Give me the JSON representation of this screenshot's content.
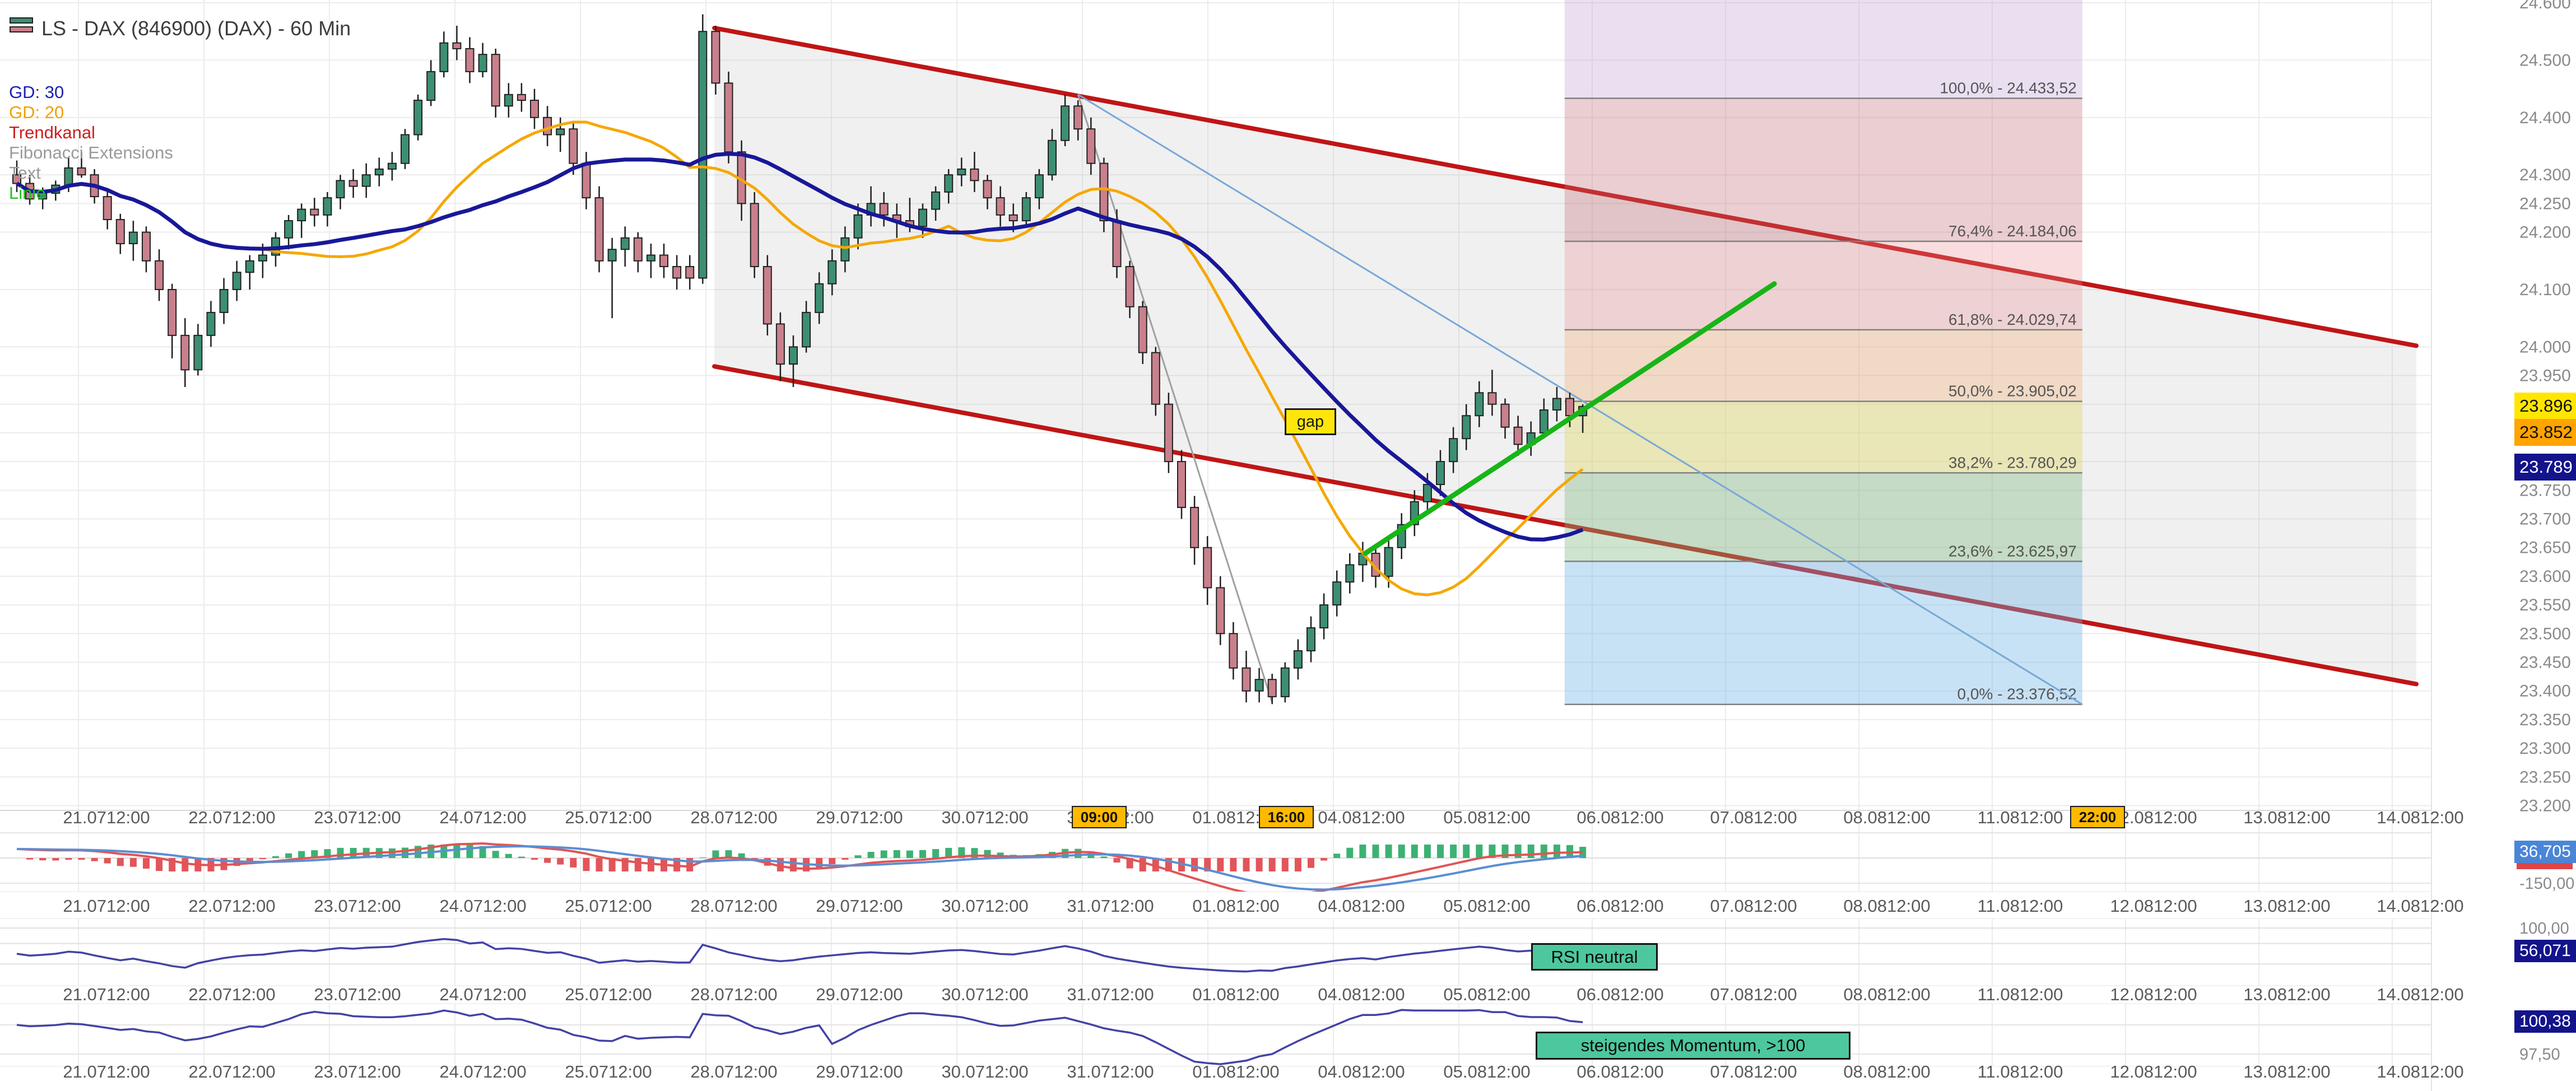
{
  "header": {
    "title": "LS - DAX (846900) (DAX) - 60 Min"
  },
  "legend": {
    "items": [
      {
        "label": "GD: 30",
        "color": "#2020b0"
      },
      {
        "label": "GD: 20",
        "color": "#f0a000"
      },
      {
        "label": "Trendkanal",
        "color": "#cc1f1f"
      },
      {
        "label": "Fibonacci Extensions",
        "color": "#9a9a9a"
      },
      {
        "label": "Text",
        "color": "#9a9a9a"
      },
      {
        "label": "Linie",
        "color": "#22c022"
      }
    ]
  },
  "annotations": {
    "gap": "gap",
    "rsi": "RSI neutral",
    "momentum": "steigendes Momentum, >100"
  },
  "price_axis": {
    "ticks": [
      "24.600",
      "24.500",
      "24.400",
      "24.300",
      "24.250",
      "24.200",
      "24.100",
      "24.000",
      "23.950",
      "23.750",
      "23.700",
      "23.650",
      "23.600",
      "23.550",
      "23.500",
      "23.450",
      "23.400",
      "23.350",
      "23.300",
      "23.250",
      "23.200"
    ],
    "hidden_grid_prices": [
      23900,
      23850,
      23800
    ],
    "badges": [
      {
        "label": "23.896",
        "bg": "#ffe600",
        "fg": "#111111",
        "price": 23896
      },
      {
        "label": "23.852",
        "bg": "#ffa400",
        "fg": "#111111",
        "price": 23852
      },
      {
        "label": "23.789",
        "bg": "#13138c",
        "fg": "#ffffff",
        "price": 23789
      }
    ]
  },
  "time_axis": {
    "dates": [
      "21.07",
      "22.07",
      "23.07",
      "24.07",
      "25.07",
      "28.07",
      "29.07",
      "30.07",
      "31.07",
      "01.08",
      "04.08",
      "05.08",
      "06.08",
      "07.08",
      "08.08",
      "11.08",
      "12.08",
      "13.08",
      "14.08"
    ],
    "time_suffix": "12:00",
    "badges": [
      {
        "label": "09:00",
        "day_index": 8,
        "dx": -20
      },
      {
        "label": "16:00",
        "day_index": 9,
        "dx": 90
      },
      {
        "label": "22:00",
        "day_index": 16,
        "dx": -100
      }
    ]
  },
  "panels": {
    "macd": {
      "name": "MACD",
      "badge": "36,705",
      "axis_label": "-150,00"
    },
    "rsi": {
      "name": "RSI",
      "badge": "56,071",
      "axis_label": "100,00"
    },
    "momentum": {
      "name": "Momentum",
      "badge": "100,38",
      "axis_label": "97,50"
    }
  },
  "chart_data": {
    "type": "candlestick",
    "title": "LS - DAX (846900) (DAX) - 60 Min",
    "interval": "60 Min",
    "ylim": [
      23200,
      24600
    ],
    "grid": true,
    "x_dates": [
      "21.07",
      "22.07",
      "23.07",
      "24.07",
      "25.07",
      "28.07",
      "29.07",
      "30.07",
      "31.07",
      "01.08",
      "04.08",
      "05.08",
      "06.08",
      "07.08",
      "08.08",
      "11.08",
      "12.08",
      "13.08",
      "14.08"
    ],
    "bars_per_day_approx": 10,
    "candles": [
      [
        24300,
        24325,
        24270,
        24285
      ],
      [
        24285,
        24300,
        24248,
        24258
      ],
      [
        24258,
        24278,
        24240,
        24268
      ],
      [
        24268,
        24290,
        24255,
        24282
      ],
      [
        24282,
        24330,
        24270,
        24312
      ],
      [
        24312,
        24340,
        24295,
        24300
      ],
      [
        24300,
        24310,
        24250,
        24262
      ],
      [
        24262,
        24272,
        24205,
        24222
      ],
      [
        24222,
        24232,
        24162,
        24180
      ],
      [
        24180,
        24220,
        24150,
        24200
      ],
      [
        24200,
        24210,
        24130,
        24150
      ],
      [
        24150,
        24170,
        24080,
        24100
      ],
      [
        24100,
        24110,
        23980,
        24020
      ],
      [
        24020,
        24050,
        23930,
        23960
      ],
      [
        23960,
        24040,
        23950,
        24020
      ],
      [
        24020,
        24080,
        24000,
        24060
      ],
      [
        24060,
        24120,
        24040,
        24100
      ],
      [
        24100,
        24150,
        24080,
        24130
      ],
      [
        24130,
        24160,
        24100,
        24150
      ],
      [
        24150,
        24180,
        24120,
        24160
      ],
      [
        24160,
        24200,
        24140,
        24190
      ],
      [
        24190,
        24230,
        24170,
        24220
      ],
      [
        24220,
        24250,
        24190,
        24240
      ],
      [
        24240,
        24260,
        24210,
        24230
      ],
      [
        24230,
        24270,
        24210,
        24260
      ],
      [
        24260,
        24300,
        24240,
        24290
      ],
      [
        24290,
        24310,
        24260,
        24280
      ],
      [
        24280,
        24320,
        24260,
        24300
      ],
      [
        24300,
        24330,
        24280,
        24310
      ],
      [
        24310,
        24340,
        24290,
        24320
      ],
      [
        24320,
        24380,
        24310,
        24370
      ],
      [
        24370,
        24440,
        24360,
        24430
      ],
      [
        24430,
        24500,
        24420,
        24480
      ],
      [
        24480,
        24550,
        24470,
        24530
      ],
      [
        24530,
        24560,
        24500,
        24520
      ],
      [
        24520,
        24540,
        24460,
        24480
      ],
      [
        24480,
        24530,
        24470,
        24510
      ],
      [
        24510,
        24520,
        24400,
        24420
      ],
      [
        24420,
        24460,
        24400,
        24440
      ],
      [
        24440,
        24460,
        24410,
        24430
      ],
      [
        24430,
        24450,
        24380,
        24400
      ],
      [
        24400,
        24420,
        24350,
        24370
      ],
      [
        24370,
        24400,
        24340,
        24380
      ],
      [
        24380,
        24390,
        24300,
        24320
      ],
      [
        24320,
        24340,
        24240,
        24260
      ],
      [
        24260,
        24280,
        24130,
        24150
      ],
      [
        24150,
        24190,
        24050,
        24170
      ],
      [
        24170,
        24210,
        24140,
        24190
      ],
      [
        24190,
        24200,
        24130,
        24150
      ],
      [
        24150,
        24180,
        24120,
        24160
      ],
      [
        24160,
        24180,
        24120,
        24140
      ],
      [
        24140,
        24160,
        24100,
        24120
      ],
      [
        24140,
        24160,
        24100,
        24120
      ],
      [
        24120,
        24580,
        24110,
        24550
      ],
      [
        24550,
        24560,
        24440,
        24460
      ],
      [
        24460,
        24480,
        24320,
        24340
      ],
      [
        24340,
        24360,
        24220,
        24250
      ],
      [
        24250,
        24270,
        24120,
        24140
      ],
      [
        24140,
        24160,
        24020,
        24040
      ],
      [
        24040,
        24060,
        23940,
        23970
      ],
      [
        23970,
        24020,
        23930,
        24000
      ],
      [
        24000,
        24080,
        23990,
        24060
      ],
      [
        24060,
        24130,
        24040,
        24110
      ],
      [
        24110,
        24170,
        24090,
        24150
      ],
      [
        24150,
        24210,
        24130,
        24190
      ],
      [
        24190,
        24250,
        24170,
        24230
      ],
      [
        24230,
        24280,
        24210,
        24250
      ],
      [
        24250,
        24270,
        24210,
        24230
      ],
      [
        24230,
        24250,
        24190,
        24220
      ],
      [
        24220,
        24260,
        24200,
        24210
      ],
      [
        24210,
        24250,
        24190,
        24240
      ],
      [
        24240,
        24280,
        24220,
        24270
      ],
      [
        24270,
        24310,
        24250,
        24300
      ],
      [
        24300,
        24330,
        24280,
        24310
      ],
      [
        24310,
        24340,
        24270,
        24290
      ],
      [
        24290,
        24300,
        24240,
        24260
      ],
      [
        24260,
        24280,
        24210,
        24230
      ],
      [
        24230,
        24250,
        24200,
        24220
      ],
      [
        24220,
        24270,
        24210,
        24260
      ],
      [
        24260,
        24310,
        24240,
        24300
      ],
      [
        24300,
        24380,
        24290,
        24360
      ],
      [
        24360,
        24440,
        24350,
        24420
      ],
      [
        24420,
        24430,
        24360,
        24380
      ],
      [
        24380,
        24400,
        24300,
        24320
      ],
      [
        24320,
        24330,
        24200,
        24220
      ],
      [
        24220,
        24240,
        24120,
        24140
      ],
      [
        24140,
        24150,
        24050,
        24070
      ],
      [
        24070,
        24080,
        23970,
        23990
      ],
      [
        23990,
        24000,
        23880,
        23900
      ],
      [
        23900,
        23920,
        23780,
        23800
      ],
      [
        23800,
        23820,
        23700,
        23720
      ],
      [
        23720,
        23740,
        23620,
        23650
      ],
      [
        23650,
        23670,
        23550,
        23580
      ],
      [
        23580,
        23600,
        23480,
        23500
      ],
      [
        23500,
        23520,
        23420,
        23440
      ],
      [
        23440,
        23470,
        23380,
        23400
      ],
      [
        23400,
        23440,
        23380,
        23420
      ],
      [
        23420,
        23430,
        23377,
        23390
      ],
      [
        23390,
        23450,
        23380,
        23440
      ],
      [
        23440,
        23490,
        23420,
        23470
      ],
      [
        23470,
        23530,
        23450,
        23510
      ],
      [
        23510,
        23570,
        23490,
        23550
      ],
      [
        23550,
        23610,
        23530,
        23590
      ],
      [
        23590,
        23640,
        23570,
        23620
      ],
      [
        23620,
        23660,
        23590,
        23640
      ],
      [
        23640,
        23650,
        23580,
        23600
      ],
      [
        23600,
        23670,
        23580,
        23650
      ],
      [
        23650,
        23710,
        23630,
        23690
      ],
      [
        23690,
        23750,
        23670,
        23730
      ],
      [
        23730,
        23780,
        23710,
        23760
      ],
      [
        23760,
        23820,
        23740,
        23800
      ],
      [
        23800,
        23860,
        23780,
        23840
      ],
      [
        23840,
        23900,
        23820,
        23880
      ],
      [
        23880,
        23940,
        23860,
        23920
      ],
      [
        23920,
        23960,
        23880,
        23900
      ],
      [
        23900,
        23910,
        23840,
        23860
      ],
      [
        23860,
        23880,
        23810,
        23830
      ],
      [
        23830,
        23870,
        23810,
        23850
      ],
      [
        23850,
        23910,
        23840,
        23890
      ],
      [
        23890,
        23930,
        23870,
        23910
      ],
      [
        23910,
        23920,
        23860,
        23880
      ],
      [
        23880,
        23900,
        23850,
        23896
      ]
    ],
    "overlays": [
      {
        "name": "GD 30",
        "type": "sma",
        "period": 30,
        "color": "#181899",
        "width": 7
      },
      {
        "name": "GD 20",
        "type": "sma",
        "period": 20,
        "color": "#f5a800",
        "width": 5
      }
    ],
    "trend_channel": {
      "color": "#c01515",
      "fill": "rgba(160,160,160,0.16)",
      "start_bar": 53.9,
      "end_bar": 185.4,
      "top_start": 24556,
      "top_end": 24002,
      "bottom_start": 23966,
      "bottom_end": 23412
    },
    "trendlines": [
      {
        "name": "impulse-line",
        "color": "#a0a0a0",
        "width": 3,
        "from_bar": 82,
        "from_price": 24440,
        "to_bar": 97,
        "to_price": 23380
      },
      {
        "name": "fib-base-line",
        "color": "#78a8d8",
        "width": 3,
        "from_bar": 82,
        "from_price": 24440,
        "to_bar": 159.6,
        "to_price": 23376.52
      },
      {
        "name": "linie",
        "color": "#17b517",
        "width": 9,
        "from_bar": 104.2,
        "from_price": 23640,
        "to_bar": 135.8,
        "to_price": 24110
      }
    ],
    "fibonacci": {
      "zone_start_bar": 119.6,
      "zone_end_bar": 159.6,
      "levels": [
        {
          "pct": "100,0%",
          "price": 24433.52,
          "label": "100,0% - 24.433,52"
        },
        {
          "pct": "76,4%",
          "price": 24184.06,
          "label": "76,4% - 24.184,06"
        },
        {
          "pct": "61,8%",
          "price": 24029.74,
          "label": "61,8% - 24.029,74"
        },
        {
          "pct": "50,0%",
          "price": 23905.02,
          "label": "50,0% - 23.905,02"
        },
        {
          "pct": "38,2%",
          "price": 23780.29,
          "label": "38,2% - 23.780,29"
        },
        {
          "pct": "23,6%",
          "price": 23625.97,
          "label": "23,6% - 23.625,97"
        },
        {
          "pct": "0,0%",
          "price": 23376.52,
          "label": "0,0% - 23.376,52"
        }
      ],
      "bands": [
        {
          "from": 24610,
          "to": 24433.52,
          "color": "rgba(185,150,210,0.30)"
        },
        {
          "from": 24433.52,
          "to": 24184.06,
          "color": "rgba(195,105,115,0.33)"
        },
        {
          "from": 24184.06,
          "to": 24029.74,
          "color": "rgba(235,140,145,0.30)"
        },
        {
          "from": 24029.74,
          "to": 23905.02,
          "color": "rgba(240,170,110,0.33)"
        },
        {
          "from": 23905.02,
          "to": 23780.29,
          "color": "rgba(225,218,105,0.42)"
        },
        {
          "from": 23780.29,
          "to": 23625.97,
          "color": "rgba(125,185,125,0.38)"
        },
        {
          "from": 23625.97,
          "to": 23376.52,
          "color": "rgba(110,180,230,0.38)"
        }
      ]
    },
    "indicators": [
      {
        "name": "MACD",
        "fast": 12,
        "slow": 26,
        "signal": 9,
        "axis_min_label": "-150,00",
        "last_value": "36,705"
      },
      {
        "name": "RSI",
        "period": 14,
        "grid_levels": [
          100,
          70,
          30
        ],
        "axis_max_label": "100,00",
        "last_value": "56,071",
        "status": "RSI neutral"
      },
      {
        "name": "Momentum",
        "period": 10,
        "grid_levels": [
          100,
          97.5
        ],
        "axis_label": "97,50",
        "last_value": "100,38",
        "status": "steigendes Momentum, >100"
      }
    ],
    "colors": {
      "candle_up": "#3d8f72",
      "candle_down": "#c9808c",
      "wick": "#1f1f1f",
      "grid": "#ececec",
      "axis_text": "#8a8a8a",
      "time_text": "#5a5a5a",
      "time_badge_bg": "#ffb900",
      "macd_line": "#5b8ed2",
      "macd_signal": "#e05555",
      "hist_up": "#3bb273",
      "hist_down": "#e2555a",
      "indicator_line": "#4343a5",
      "fib_line": "#808080",
      "fib_text": "#555555"
    }
  }
}
